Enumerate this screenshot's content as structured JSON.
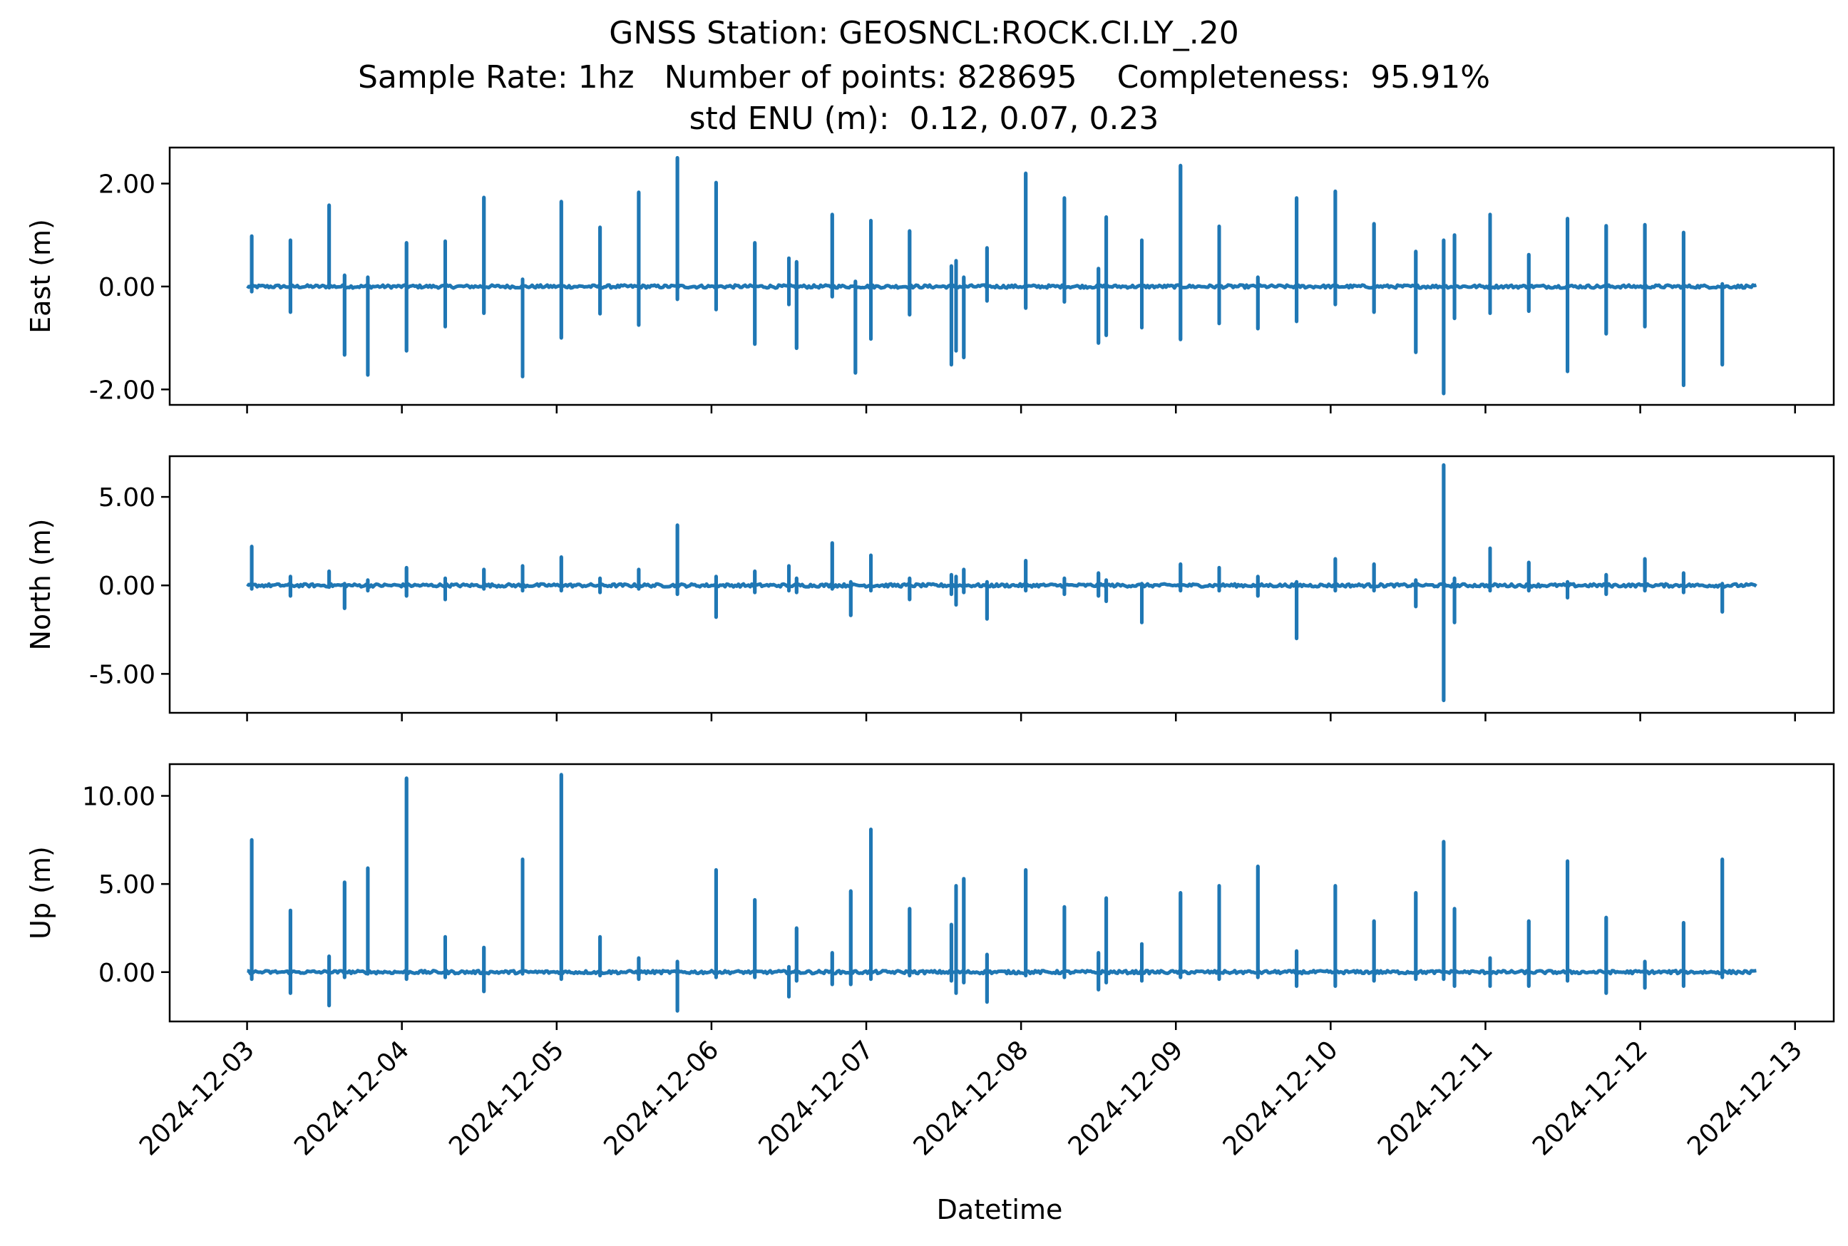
{
  "chart_data": {
    "type": "line",
    "title_lines": [
      "GNSS Station: GEOSNCL:ROCK.CI.LY_.20",
      "Sample Rate: 1hz   Number of points: 828695    Completeness:  95.91%",
      "std ENU (m):  0.12, 0.07, 0.23"
    ],
    "xlabel": "Datetime",
    "x_ticks": [
      "2024-12-03",
      "2024-12-04",
      "2024-12-05",
      "2024-12-06",
      "2024-12-07",
      "2024-12-08",
      "2024-12-09",
      "2024-12-10",
      "2024-12-11",
      "2024-12-12",
      "2024-12-13"
    ],
    "x_range_days": [
      -0.5,
      10.25
    ],
    "line_color": "#1f77b4",
    "panels": [
      {
        "ylabel": "East (m)",
        "ylim": [
          -2.3,
          2.7
        ],
        "yticks": [
          2.0,
          0.0,
          -2.0
        ],
        "ytick_labels": [
          "2.00",
          "0.00",
          "-2.00"
        ],
        "spikes": [
          {
            "t": 0.03,
            "max": 0.98,
            "min": -0.1
          },
          {
            "t": 0.28,
            "max": 0.9,
            "min": -0.5
          },
          {
            "t": 0.53,
            "max": 1.58,
            "min": 0.0
          },
          {
            "t": 0.63,
            "max": 0.22,
            "min": -1.33
          },
          {
            "t": 0.78,
            "max": 0.18,
            "min": -1.72
          },
          {
            "t": 1.03,
            "max": 0.85,
            "min": -1.25
          },
          {
            "t": 1.28,
            "max": 0.88,
            "min": -0.78
          },
          {
            "t": 1.53,
            "max": 1.73,
            "min": -0.52
          },
          {
            "t": 1.78,
            "max": 0.14,
            "min": -1.75
          },
          {
            "t": 2.03,
            "max": 1.65,
            "min": -1.0
          },
          {
            "t": 2.28,
            "max": 1.15,
            "min": -0.53
          },
          {
            "t": 2.53,
            "max": 1.83,
            "min": -0.75
          },
          {
            "t": 2.78,
            "max": 2.5,
            "min": -0.25
          },
          {
            "t": 3.03,
            "max": 2.02,
            "min": -0.45
          },
          {
            "t": 3.28,
            "max": 0.85,
            "min": -1.12
          },
          {
            "t": 3.5,
            "max": 0.55,
            "min": -0.35
          },
          {
            "t": 3.55,
            "max": 0.48,
            "min": -1.2
          },
          {
            "t": 3.78,
            "max": 1.4,
            "min": -0.2
          },
          {
            "t": 3.93,
            "max": 0.1,
            "min": -1.68
          },
          {
            "t": 4.03,
            "max": 1.28,
            "min": -1.02
          },
          {
            "t": 4.28,
            "max": 1.08,
            "min": -0.55
          },
          {
            "t": 4.55,
            "max": 0.4,
            "min": -1.52
          },
          {
            "t": 4.58,
            "max": 0.5,
            "min": -1.25
          },
          {
            "t": 4.63,
            "max": 0.18,
            "min": -1.38
          },
          {
            "t": 4.78,
            "max": 0.75,
            "min": -0.28
          },
          {
            "t": 5.03,
            "max": 2.2,
            "min": -0.42
          },
          {
            "t": 5.28,
            "max": 1.72,
            "min": -0.3
          },
          {
            "t": 5.5,
            "max": 0.35,
            "min": -1.1
          },
          {
            "t": 5.55,
            "max": 1.35,
            "min": -0.95
          },
          {
            "t": 5.78,
            "max": 0.9,
            "min": -0.8
          },
          {
            "t": 6.03,
            "max": 2.35,
            "min": -1.03
          },
          {
            "t": 6.28,
            "max": 1.17,
            "min": -0.72
          },
          {
            "t": 6.53,
            "max": 0.18,
            "min": -0.82
          },
          {
            "t": 6.78,
            "max": 1.72,
            "min": -0.68
          },
          {
            "t": 7.03,
            "max": 1.85,
            "min": -0.35
          },
          {
            "t": 7.28,
            "max": 1.22,
            "min": -0.5
          },
          {
            "t": 7.55,
            "max": 0.68,
            "min": -1.28
          },
          {
            "t": 7.73,
            "max": 0.9,
            "min": -2.08
          },
          {
            "t": 7.8,
            "max": 1.0,
            "min": -0.62
          },
          {
            "t": 8.03,
            "max": 1.4,
            "min": -0.52
          },
          {
            "t": 8.28,
            "max": 0.62,
            "min": -0.48
          },
          {
            "t": 8.53,
            "max": 1.32,
            "min": -1.65
          },
          {
            "t": 8.78,
            "max": 1.18,
            "min": -0.92
          },
          {
            "t": 9.03,
            "max": 1.2,
            "min": -0.78
          },
          {
            "t": 9.28,
            "max": 1.05,
            "min": -1.92
          },
          {
            "t": 9.53,
            "max": 0.05,
            "min": -1.52
          }
        ]
      },
      {
        "ylabel": "North (m)",
        "ylim": [
          -7.2,
          7.3
        ],
        "yticks": [
          5.0,
          0.0,
          -5.0
        ],
        "ytick_labels": [
          "5.00",
          "0.00",
          "-5.00"
        ],
        "spikes": [
          {
            "t": 0.03,
            "max": 2.2,
            "min": -0.2
          },
          {
            "t": 0.28,
            "max": 0.5,
            "min": -0.6
          },
          {
            "t": 0.53,
            "max": 0.8,
            "min": -0.1
          },
          {
            "t": 0.63,
            "max": 0.1,
            "min": -1.3
          },
          {
            "t": 0.78,
            "max": 0.3,
            "min": -0.3
          },
          {
            "t": 1.03,
            "max": 1.0,
            "min": -0.6
          },
          {
            "t": 1.28,
            "max": 0.4,
            "min": -0.8
          },
          {
            "t": 1.53,
            "max": 0.9,
            "min": -0.2
          },
          {
            "t": 1.78,
            "max": 1.1,
            "min": -0.3
          },
          {
            "t": 2.03,
            "max": 1.6,
            "min": -0.3
          },
          {
            "t": 2.28,
            "max": 0.4,
            "min": -0.4
          },
          {
            "t": 2.53,
            "max": 0.9,
            "min": -0.2
          },
          {
            "t": 2.78,
            "max": 3.4,
            "min": -0.5
          },
          {
            "t": 3.03,
            "max": 0.5,
            "min": -1.8
          },
          {
            "t": 3.28,
            "max": 0.8,
            "min": -0.4
          },
          {
            "t": 3.5,
            "max": 1.1,
            "min": -0.3
          },
          {
            "t": 3.55,
            "max": 0.4,
            "min": -0.4
          },
          {
            "t": 3.78,
            "max": 2.4,
            "min": -0.2
          },
          {
            "t": 3.9,
            "max": 0.2,
            "min": -1.7
          },
          {
            "t": 4.03,
            "max": 1.7,
            "min": -0.3
          },
          {
            "t": 4.28,
            "max": 0.4,
            "min": -0.8
          },
          {
            "t": 4.55,
            "max": 0.6,
            "min": -0.5
          },
          {
            "t": 4.58,
            "max": 0.5,
            "min": -1.1
          },
          {
            "t": 4.63,
            "max": 0.9,
            "min": -0.4
          },
          {
            "t": 4.78,
            "max": 0.2,
            "min": -1.9
          },
          {
            "t": 5.03,
            "max": 1.4,
            "min": -0.3
          },
          {
            "t": 5.28,
            "max": 0.4,
            "min": -0.5
          },
          {
            "t": 5.5,
            "max": 0.7,
            "min": -0.6
          },
          {
            "t": 5.55,
            "max": 0.3,
            "min": -0.9
          },
          {
            "t": 5.78,
            "max": 0.1,
            "min": -2.1
          },
          {
            "t": 6.03,
            "max": 1.2,
            "min": -0.3
          },
          {
            "t": 6.28,
            "max": 1.0,
            "min": -0.3
          },
          {
            "t": 6.53,
            "max": 0.5,
            "min": -0.6
          },
          {
            "t": 6.78,
            "max": 0.2,
            "min": -3.0
          },
          {
            "t": 7.03,
            "max": 1.5,
            "min": -0.3
          },
          {
            "t": 7.28,
            "max": 1.2,
            "min": -0.3
          },
          {
            "t": 7.55,
            "max": 0.3,
            "min": -1.2
          },
          {
            "t": 7.73,
            "max": 6.8,
            "min": -6.5
          },
          {
            "t": 7.8,
            "max": 0.4,
            "min": -2.1
          },
          {
            "t": 8.03,
            "max": 2.1,
            "min": -0.3
          },
          {
            "t": 8.28,
            "max": 1.3,
            "min": -0.3
          },
          {
            "t": 8.53,
            "max": 0.2,
            "min": -0.7
          },
          {
            "t": 8.78,
            "max": 0.6,
            "min": -0.5
          },
          {
            "t": 9.03,
            "max": 1.5,
            "min": -0.3
          },
          {
            "t": 9.28,
            "max": 0.7,
            "min": -0.4
          },
          {
            "t": 9.53,
            "max": 0.1,
            "min": -1.5
          }
        ]
      },
      {
        "ylabel": "Up (m)",
        "ylim": [
          -2.8,
          11.8
        ],
        "yticks": [
          10.0,
          5.0,
          0.0
        ],
        "ytick_labels": [
          "10.00",
          "5.00",
          "0.00"
        ],
        "spikes": [
          {
            "t": 0.03,
            "max": 7.5,
            "min": -0.4
          },
          {
            "t": 0.28,
            "max": 3.5,
            "min": -1.2
          },
          {
            "t": 0.53,
            "max": 0.9,
            "min": -1.9
          },
          {
            "t": 0.63,
            "max": 5.1,
            "min": -0.3
          },
          {
            "t": 0.78,
            "max": 5.9,
            "min": -0.1
          },
          {
            "t": 1.03,
            "max": 11.0,
            "min": -0.4
          },
          {
            "t": 1.28,
            "max": 2.0,
            "min": -0.3
          },
          {
            "t": 1.53,
            "max": 1.4,
            "min": -1.1
          },
          {
            "t": 1.78,
            "max": 6.4,
            "min": -0.1
          },
          {
            "t": 2.03,
            "max": 11.2,
            "min": -0.4
          },
          {
            "t": 2.28,
            "max": 2.0,
            "min": -0.2
          },
          {
            "t": 2.53,
            "max": 0.8,
            "min": -0.4
          },
          {
            "t": 2.78,
            "max": 0.6,
            "min": -2.2
          },
          {
            "t": 3.03,
            "max": 5.8,
            "min": -0.3
          },
          {
            "t": 3.28,
            "max": 4.1,
            "min": -0.3
          },
          {
            "t": 3.5,
            "max": 0.3,
            "min": -1.4
          },
          {
            "t": 3.55,
            "max": 2.5,
            "min": -0.5
          },
          {
            "t": 3.78,
            "max": 1.1,
            "min": -0.7
          },
          {
            "t": 3.9,
            "max": 4.6,
            "min": -0.7
          },
          {
            "t": 4.03,
            "max": 8.1,
            "min": -0.4
          },
          {
            "t": 4.28,
            "max": 3.6,
            "min": -0.2
          },
          {
            "t": 4.55,
            "max": 2.7,
            "min": -0.5
          },
          {
            "t": 4.58,
            "max": 4.9,
            "min": -1.2
          },
          {
            "t": 4.63,
            "max": 5.3,
            "min": -0.6
          },
          {
            "t": 4.78,
            "max": 1.0,
            "min": -1.7
          },
          {
            "t": 5.03,
            "max": 5.8,
            "min": -0.2
          },
          {
            "t": 5.28,
            "max": 3.7,
            "min": -0.3
          },
          {
            "t": 5.5,
            "max": 1.1,
            "min": -1.0
          },
          {
            "t": 5.55,
            "max": 4.2,
            "min": -0.6
          },
          {
            "t": 5.78,
            "max": 1.6,
            "min": -0.5
          },
          {
            "t": 6.03,
            "max": 4.5,
            "min": -0.3
          },
          {
            "t": 6.28,
            "max": 4.9,
            "min": -0.4
          },
          {
            "t": 6.53,
            "max": 6.0,
            "min": -0.3
          },
          {
            "t": 6.78,
            "max": 1.2,
            "min": -0.8
          },
          {
            "t": 7.03,
            "max": 4.9,
            "min": -0.8
          },
          {
            "t": 7.28,
            "max": 2.9,
            "min": -0.5
          },
          {
            "t": 7.55,
            "max": 4.5,
            "min": -0.4
          },
          {
            "t": 7.73,
            "max": 7.4,
            "min": -0.4
          },
          {
            "t": 7.8,
            "max": 3.6,
            "min": -0.8
          },
          {
            "t": 8.03,
            "max": 0.8,
            "min": -0.8
          },
          {
            "t": 8.28,
            "max": 2.9,
            "min": -0.8
          },
          {
            "t": 8.53,
            "max": 6.3,
            "min": -0.5
          },
          {
            "t": 8.78,
            "max": 3.1,
            "min": -1.2
          },
          {
            "t": 9.03,
            "max": 0.6,
            "min": -0.9
          },
          {
            "t": 9.28,
            "max": 2.8,
            "min": -0.8
          },
          {
            "t": 9.53,
            "max": 6.4,
            "min": -0.3
          }
        ]
      }
    ]
  }
}
